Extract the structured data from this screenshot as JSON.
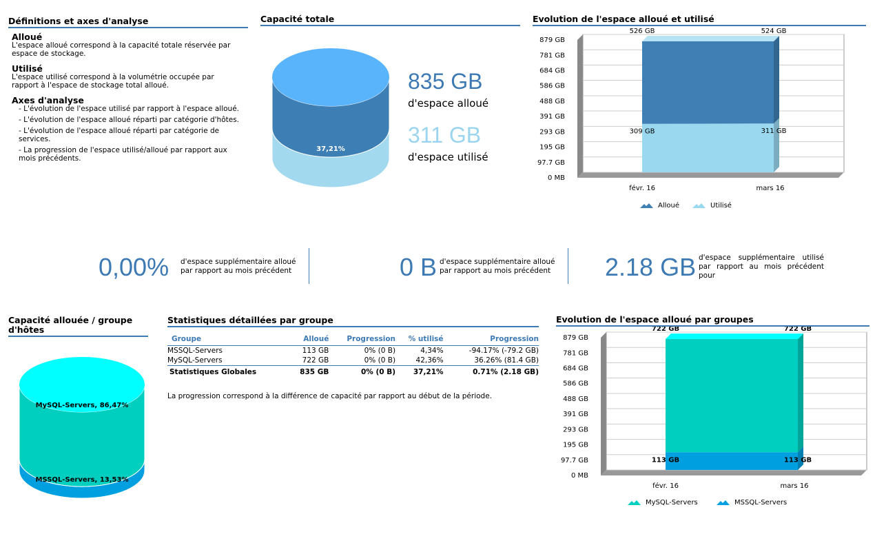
{
  "definitions": {
    "title": "Définitions et axes d'analyse",
    "sections": [
      {
        "heading": "Alloué",
        "text": "L'espace alloué correspond à la capacité totale réservée par espace de stockage."
      },
      {
        "heading": "Utilisé",
        "text": "L'espace utilisé correspond à la volumétrie occupée par rapport à l'espace de stockage total alloué."
      }
    ],
    "axes_heading": "Axes d'analyse",
    "axes": [
      "- L'évolution de l'espace utilisé par rapport à l'espace alloué.",
      "- L'évolution de l'espace alloué réparti par catégorie d'hôtes.",
      "- L'évolution de l'espace alloué réparti par catégorie de services.",
      "- La progression de l'espace utilisé/alloué par rapport aux mois précédents."
    ]
  },
  "total_capacity": {
    "type": "cylinder",
    "title": "Capacité totale",
    "allocated": "835 GB",
    "allocated_text": "d'espace alloué",
    "used": "311 GB",
    "used_text": "d'espace utilisé",
    "used_share": {
      "value": 37.21,
      "label": "37,21%"
    }
  },
  "allocation_chart": {
    "type": "area",
    "stacked": true,
    "title": "Evolution de l'espace alloué et utilisé",
    "categories": [
      "févr. 16",
      "mars 16"
    ],
    "series": [
      {
        "name": "Alloué",
        "color": "#3f7fb4",
        "values": [
          526,
          524
        ],
        "value_labels": [
          "526 GB",
          "524 GB"
        ]
      },
      {
        "name": "Utilisé",
        "color": "#9ad8ef",
        "values": [
          309,
          311
        ],
        "value_labels": [
          "309 GB",
          "311 GB"
        ]
      }
    ],
    "ylim": [
      0,
      879
    ],
    "yticks": [
      {
        "value": 0,
        "label": "0 MB"
      },
      {
        "value": 97.7,
        "label": "97.7 GB"
      },
      {
        "value": 195,
        "label": "195 GB"
      },
      {
        "value": 293,
        "label": "293 GB"
      },
      {
        "value": 391,
        "label": "391 GB"
      },
      {
        "value": 488,
        "label": "488 GB"
      },
      {
        "value": 586,
        "label": "586 GB"
      },
      {
        "value": 684,
        "label": "684 GB"
      },
      {
        "value": 781,
        "label": "781 GB"
      },
      {
        "value": 879,
        "label": "879 GB"
      }
    ],
    "grid": true
  },
  "kpis": [
    {
      "value": "0,00%",
      "text": "d'espace supplémentaire alloué par rapport au mois précédent"
    },
    {
      "value": "0 B",
      "text": "d'espace supplémentaire alloué par rapport au mois précédent"
    },
    {
      "value": "2.18 GB",
      "text": "d'espace supplémentaire utilisé par rapport au mois précédent pour"
    }
  ],
  "group_share": {
    "type": "cylinder",
    "title": "Capacité allouée / groupe d'hôtes",
    "values": [
      86.47,
      13.53
    ],
    "value_labels": [
      "MySQL-Servers, 86,47%",
      "MSSQL-Servers, 13,53%"
    ],
    "colors": [
      "#00cfc0",
      "#009fe0"
    ]
  },
  "group_table": {
    "title": "Statistiques détaillées par groupe",
    "header": [
      "Groupe",
      "Alloué",
      "Progression",
      "% utilisé",
      "Progression"
    ],
    "rows": [
      [
        "MSSQL-Servers",
        "113 GB",
        "0% (0 B)",
        "4,34%",
        "-94.17% (-79.2 GB)"
      ],
      [
        "MySQL-Servers",
        "722 GB",
        "0% (0 B)",
        "42,36%",
        "36.26% (81.4 GB)"
      ]
    ],
    "total": [
      "Statistiques Globales",
      "835 GB",
      "0% (0 B)",
      "37,21%",
      "0.71% (2.18 GB)"
    ],
    "note": "La progression correspond à la différence de capacité par rapport au début de la période."
  },
  "group_chart": {
    "type": "area",
    "stacked": true,
    "title": "Evolution de l'espace alloué par groupes",
    "categories": [
      "févr. 16",
      "mars 16"
    ],
    "series": [
      {
        "name": "MySQL-Servers",
        "color": "#00cfc0",
        "values": [
          722,
          722
        ],
        "value_labels": [
          "722 GB",
          "722 GB"
        ]
      },
      {
        "name": "MSSQL-Servers",
        "color": "#009fe0",
        "values": [
          113,
          113
        ],
        "value_labels": [
          "113 GB",
          "113 GB"
        ]
      }
    ],
    "ylim": [
      0,
      879
    ],
    "yticks": [
      {
        "value": 0,
        "label": "0 MB"
      },
      {
        "value": 97.7,
        "label": "97.7 GB"
      },
      {
        "value": 195,
        "label": "195 GB"
      },
      {
        "value": 293,
        "label": "293 GB"
      },
      {
        "value": 391,
        "label": "391 GB"
      },
      {
        "value": 488,
        "label": "488 GB"
      },
      {
        "value": 586,
        "label": "586 GB"
      },
      {
        "value": 684,
        "label": "684 GB"
      },
      {
        "value": 781,
        "label": "781 GB"
      },
      {
        "value": 879,
        "label": "879 GB"
      }
    ],
    "grid": true
  }
}
